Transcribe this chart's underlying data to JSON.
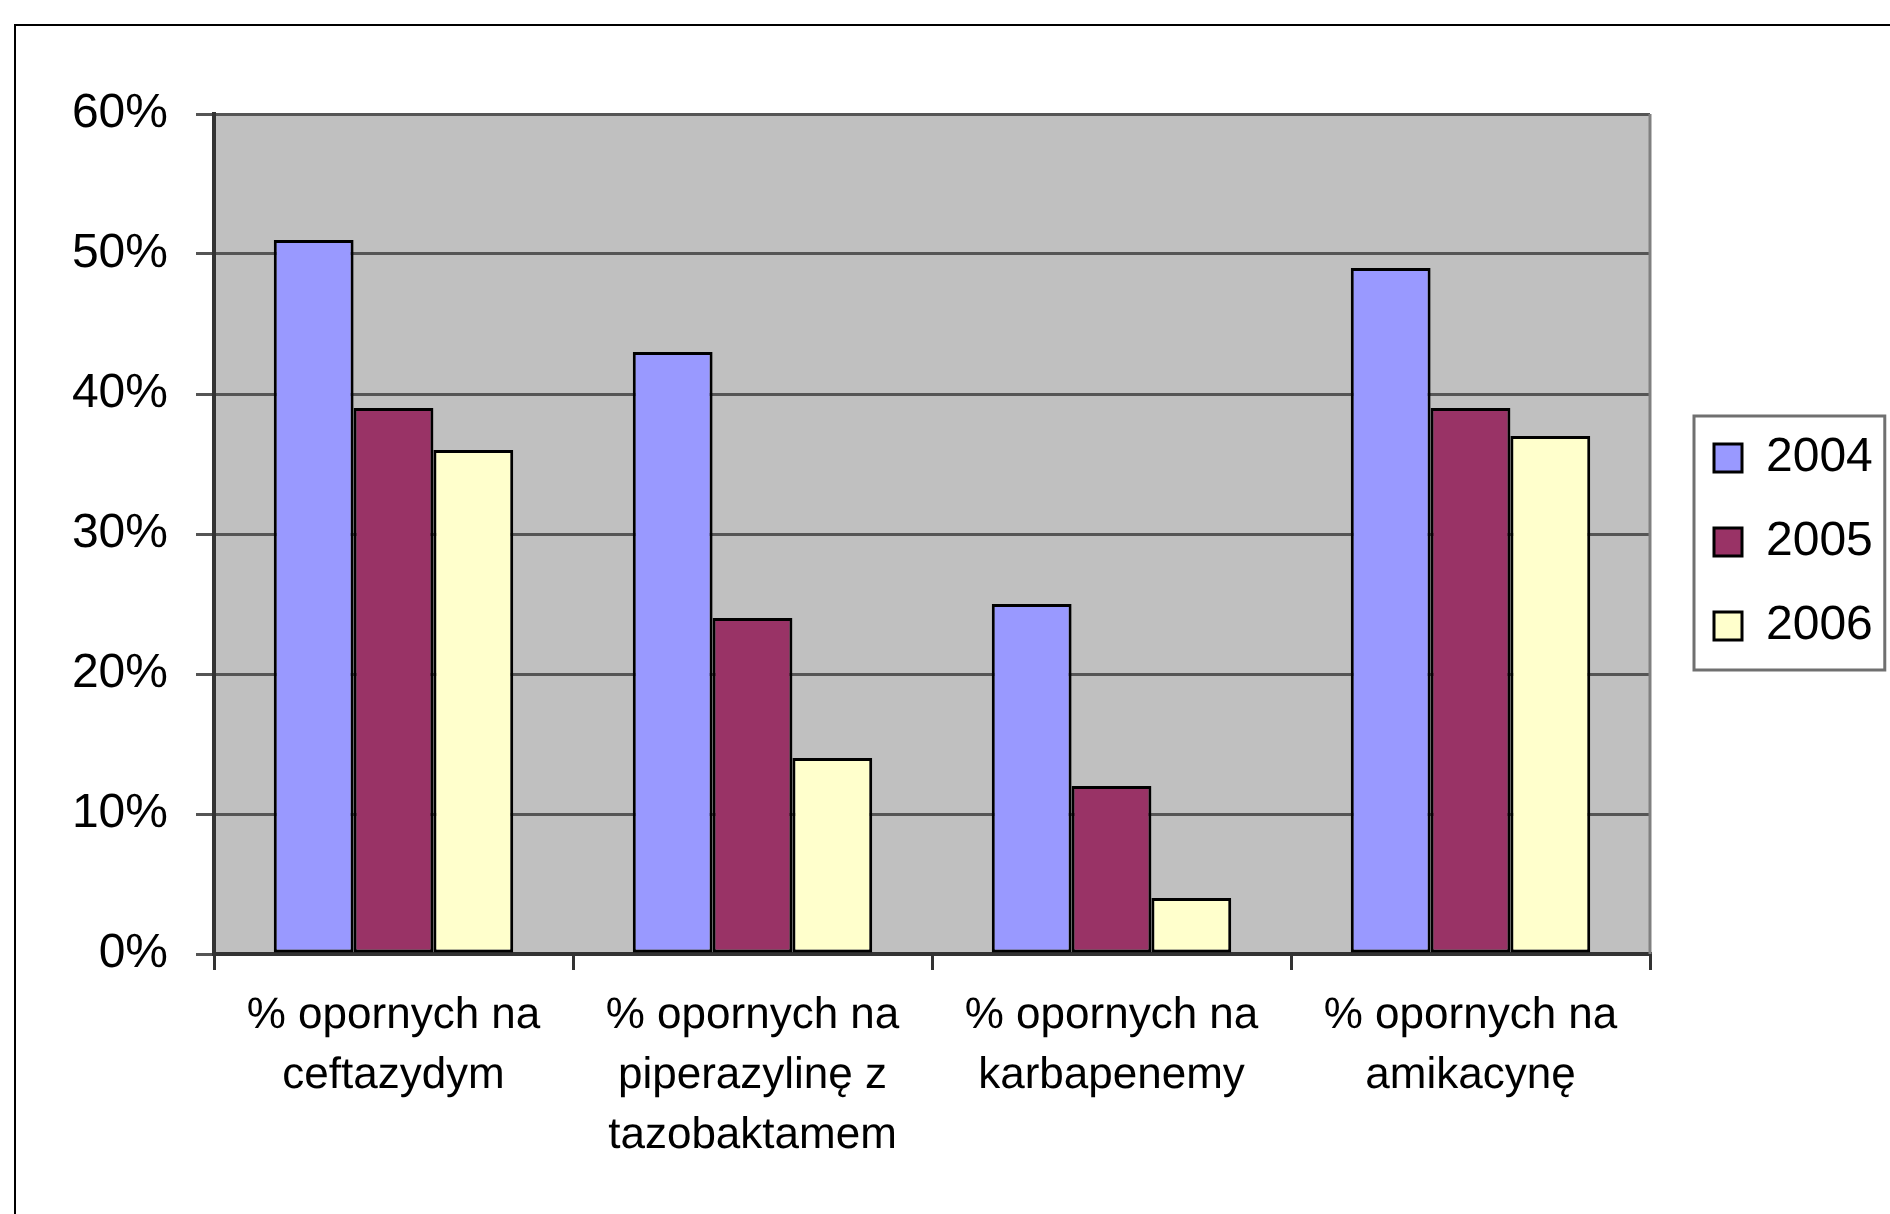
{
  "chart_data": {
    "type": "bar",
    "categories": [
      "% opornych na ceftazydym",
      "% opornych na piperazylinę z tazobaktamem",
      "% opornych na karbapenemy",
      "% opornych na amikacynę"
    ],
    "series": [
      {
        "name": "2004",
        "color": "#9999ff",
        "values": [
          51,
          43,
          25,
          49
        ]
      },
      {
        "name": "2005",
        "color": "#993366",
        "values": [
          39,
          24,
          12,
          39
        ]
      },
      {
        "name": "2006",
        "color": "#ffffcc",
        "values": [
          36,
          14,
          4,
          37
        ]
      }
    ],
    "ylim": [
      0,
      60
    ],
    "yticks": [
      {
        "value": 0,
        "label": "0%"
      },
      {
        "value": 10,
        "label": "10%"
      },
      {
        "value": 20,
        "label": "20%"
      },
      {
        "value": 30,
        "label": "30%"
      },
      {
        "value": 40,
        "label": "40%"
      },
      {
        "value": 50,
        "label": "50%"
      },
      {
        "value": 60,
        "label": "60%"
      }
    ],
    "grid": "y",
    "legend": "right"
  }
}
